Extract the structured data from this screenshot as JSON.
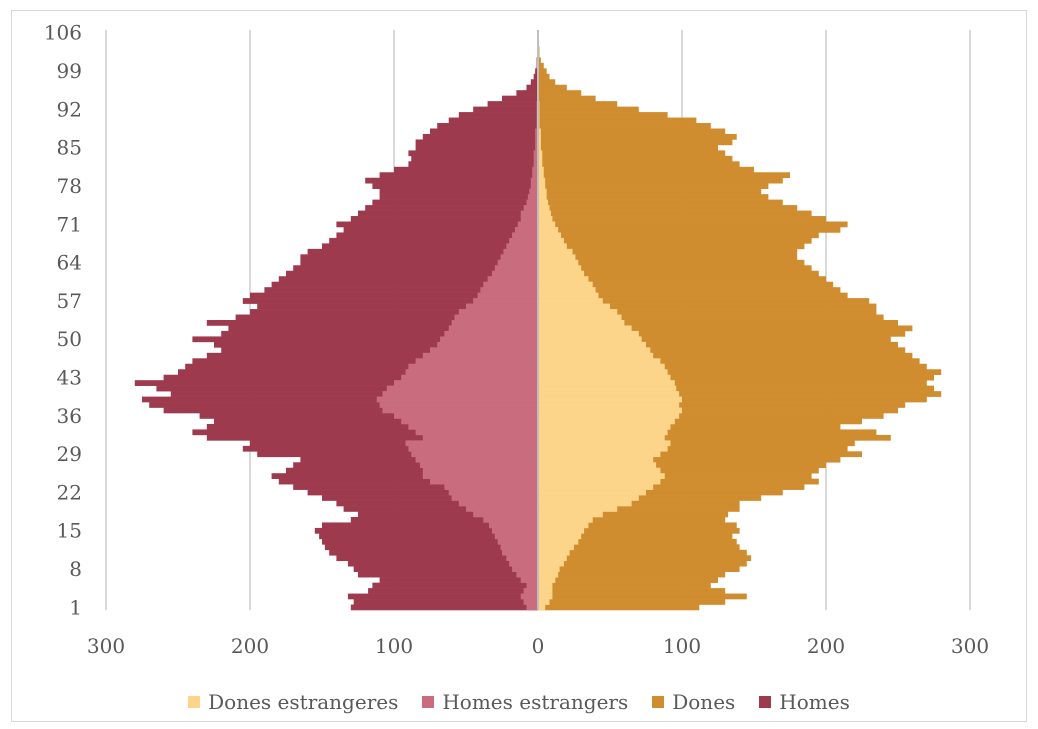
{
  "chart_data": {
    "type": "bar",
    "orientation": "horizontal-population-pyramid",
    "title": "",
    "xlabel": "",
    "ylabel": "",
    "xlim": [
      -300,
      300
    ],
    "x_ticks": [
      -300,
      -200,
      -100,
      0,
      100,
      200,
      300
    ],
    "x_tick_labels": [
      "300",
      "200",
      "100",
      "0",
      "100",
      "200",
      "300"
    ],
    "y_tick_labels": [
      "1",
      "8",
      "15",
      "22",
      "29",
      "36",
      "43",
      "50",
      "57",
      "64",
      "71",
      "78",
      "85",
      "92",
      "99",
      "106"
    ],
    "grid": "vertical",
    "legend_position": "bottom",
    "age_range": [
      1,
      106
    ],
    "categories": [
      1,
      2,
      3,
      4,
      5,
      6,
      7,
      8,
      9,
      10,
      11,
      12,
      13,
      14,
      15,
      16,
      17,
      18,
      19,
      20,
      21,
      22,
      23,
      24,
      25,
      26,
      27,
      28,
      29,
      30,
      31,
      32,
      33,
      34,
      35,
      36,
      37,
      38,
      39,
      40,
      41,
      42,
      43,
      44,
      45,
      46,
      47,
      48,
      49,
      50,
      51,
      52,
      53,
      54,
      55,
      56,
      57,
      58,
      59,
      60,
      61,
      62,
      63,
      64,
      65,
      66,
      67,
      68,
      69,
      70,
      71,
      72,
      73,
      74,
      75,
      76,
      77,
      78,
      79,
      80,
      81,
      82,
      83,
      84,
      85,
      86,
      87,
      88,
      89,
      90,
      91,
      92,
      93,
      94,
      95,
      96,
      97,
      98,
      99,
      100,
      101,
      102,
      103,
      104,
      105,
      106
    ],
    "series": [
      {
        "name": "Homes",
        "side": "left",
        "color": "#9e3a4d",
        "values": [
          130,
          128,
          132,
          118,
          115,
          110,
          125,
          128,
          132,
          140,
          145,
          148,
          150,
          152,
          155,
          150,
          130,
          125,
          135,
          140,
          150,
          160,
          170,
          180,
          185,
          175,
          170,
          165,
          195,
          205,
          200,
          230,
          240,
          230,
          225,
          235,
          260,
          270,
          275,
          255,
          265,
          280,
          260,
          250,
          245,
          240,
          230,
          220,
          225,
          240,
          220,
          215,
          230,
          210,
          200,
          195,
          205,
          200,
          190,
          185,
          180,
          175,
          170,
          165,
          165,
          160,
          150,
          145,
          140,
          135,
          140,
          130,
          125,
          120,
          115,
          110,
          110,
          115,
          120,
          110,
          100,
          90,
          88,
          90,
          85,
          85,
          80,
          75,
          70,
          62,
          55,
          45,
          35,
          25,
          15,
          8,
          5,
          3,
          2,
          1,
          1,
          0,
          0,
          0,
          0,
          0
        ]
      },
      {
        "name": "Dones",
        "side": "right",
        "color": "#d08d2f",
        "values": [
          112,
          130,
          145,
          130,
          120,
          125,
          130,
          140,
          145,
          148,
          145,
          140,
          138,
          135,
          140,
          138,
          130,
          132,
          140,
          140,
          155,
          170,
          185,
          195,
          190,
          195,
          200,
          210,
          225,
          215,
          220,
          245,
          235,
          210,
          225,
          240,
          250,
          255,
          270,
          280,
          275,
          270,
          275,
          280,
          270,
          265,
          260,
          255,
          250,
          245,
          255,
          260,
          250,
          240,
          235,
          235,
          230,
          215,
          210,
          205,
          200,
          195,
          190,
          185,
          180,
          180,
          185,
          190,
          195,
          210,
          215,
          200,
          190,
          180,
          170,
          160,
          155,
          160,
          170,
          175,
          150,
          140,
          135,
          130,
          125,
          135,
          138,
          130,
          120,
          110,
          90,
          70,
          55,
          40,
          30,
          20,
          12,
          8,
          6,
          4,
          2,
          1,
          1,
          0,
          0,
          0
        ]
      },
      {
        "name": "Homes estrangers",
        "side": "left",
        "color": "#c96d7e",
        "values": [
          8,
          10,
          12,
          10,
          8,
          12,
          15,
          18,
          20,
          22,
          25,
          26,
          28,
          30,
          32,
          34,
          38,
          45,
          50,
          55,
          60,
          62,
          65,
          75,
          80,
          80,
          82,
          85,
          88,
          90,
          92,
          80,
          85,
          90,
          95,
          100,
          108,
          110,
          112,
          108,
          105,
          100,
          95,
          92,
          90,
          85,
          80,
          75,
          70,
          68,
          65,
          62,
          60,
          58,
          55,
          50,
          45,
          42,
          40,
          38,
          35,
          32,
          30,
          28,
          26,
          24,
          22,
          20,
          18,
          16,
          14,
          12,
          12,
          10,
          8,
          7,
          6,
          5,
          5,
          4,
          4,
          3,
          3,
          3,
          2,
          2,
          2,
          2,
          1,
          1,
          1,
          1,
          1,
          0,
          0,
          0,
          0,
          0,
          0,
          0,
          0,
          0,
          0,
          0,
          0,
          0
        ]
      },
      {
        "name": "Dones estrangeres",
        "side": "right",
        "color": "#fcd48a",
        "values": [
          5,
          8,
          10,
          10,
          10,
          12,
          14,
          15,
          18,
          20,
          22,
          25,
          28,
          30,
          32,
          35,
          38,
          45,
          55,
          65,
          70,
          75,
          80,
          85,
          88,
          85,
          82,
          80,
          85,
          90,
          92,
          88,
          90,
          92,
          95,
          98,
          100,
          98,
          100,
          98,
          96,
          95,
          92,
          90,
          88,
          85,
          80,
          78,
          75,
          72,
          70,
          65,
          60,
          58,
          55,
          50,
          45,
          42,
          40,
          38,
          35,
          32,
          30,
          28,
          26,
          24,
          20,
          18,
          16,
          14,
          12,
          10,
          9,
          8,
          7,
          6,
          6,
          5,
          5,
          4,
          4,
          3,
          3,
          3,
          2,
          2,
          2,
          2,
          1,
          1,
          1,
          1,
          1,
          0,
          0,
          0,
          0,
          0,
          0,
          0,
          0,
          0,
          0,
          0,
          0,
          0
        ]
      }
    ]
  },
  "legend": {
    "items": [
      {
        "label": "Dones estrangeres",
        "color": "#fcd48a"
      },
      {
        "label": "Homes estrangers",
        "color": "#c96d7e"
      },
      {
        "label": "Dones",
        "color": "#d08d2f"
      },
      {
        "label": "Homes",
        "color": "#9e3a4d"
      }
    ]
  }
}
